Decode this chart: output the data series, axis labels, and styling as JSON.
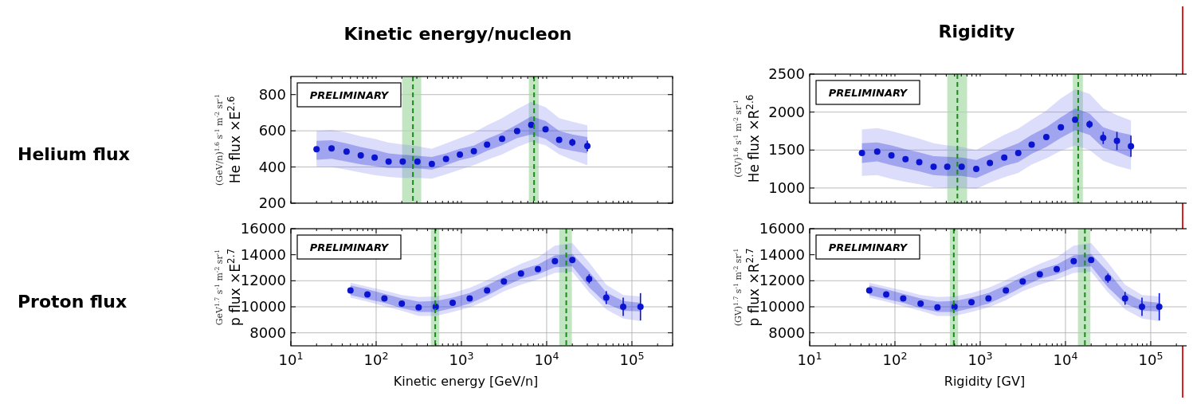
{
  "chart_data": [
    {
      "type": "scatter",
      "title": "Kinetic energy/nucleon",
      "ylabel": "(GeV/n)$^{1.6}$ s$^{-1}$ m$^{-2}$ sr$^{-1}$\nHe flux ×E$^{2.6}$",
      "annotations": [
        "PRELIMINARY",
        "Helium flux"
      ],
      "log": "x",
      "grid": true,
      "marker": "circle",
      "tick_labels": "y",
      "x": [
        20,
        30,
        45,
        66,
        96,
        140,
        205,
        305,
        450,
        660,
        960,
        1400,
        2000,
        3000,
        4500,
        6600,
        9700,
        14000,
        20000,
        30000
      ],
      "xlim": [
        10,
        300000
      ],
      "xticks": [
        {
          "value": 10,
          "label": null
        },
        {
          "value": 20,
          "label": null
        },
        {
          "value": 30,
          "label": null
        },
        {
          "value": 40,
          "label": null
        },
        {
          "value": 50,
          "label": null
        },
        {
          "value": 60,
          "label": null
        },
        {
          "value": 70,
          "label": null
        },
        {
          "value": 80,
          "label": null
        },
        {
          "value": 90,
          "label": null
        },
        {
          "value": 100,
          "label": null
        },
        {
          "value": 200,
          "label": null
        },
        {
          "value": 300,
          "label": null
        },
        {
          "value": 400,
          "label": null
        },
        {
          "value": 500,
          "label": null
        },
        {
          "value": 600,
          "label": null
        },
        {
          "value": 700,
          "label": null
        },
        {
          "value": 800,
          "label": null
        },
        {
          "value": 900,
          "label": null
        },
        {
          "value": 1000,
          "label": null
        },
        {
          "value": 2000,
          "label": null
        },
        {
          "value": 3000,
          "label": null
        },
        {
          "value": 4000,
          "label": null
        },
        {
          "value": 5000,
          "label": null
        },
        {
          "value": 6000,
          "label": null
        },
        {
          "value": 7000,
          "label": null
        },
        {
          "value": 8000,
          "label": null
        },
        {
          "value": 9000,
          "label": null
        },
        {
          "value": 10000,
          "label": null
        },
        {
          "value": 20000,
          "label": null
        },
        {
          "value": 30000,
          "label": null
        },
        {
          "value": 40000,
          "label": null
        },
        {
          "value": 50000,
          "label": null
        },
        {
          "value": 60000,
          "label": null
        },
        {
          "value": 70000,
          "label": null
        },
        {
          "value": 80000,
          "label": null
        },
        {
          "value": 90000,
          "label": null
        },
        {
          "value": 100000,
          "label": null
        },
        {
          "value": 200000,
          "label": null
        },
        {
          "value": 300000,
          "label": null
        }
      ],
      "ylim": [
        200,
        900
      ],
      "yticks": [
        200,
        400,
        600,
        800
      ],
      "bands": [
        {
          "axis": "x",
          "from": 202,
          "to": 338,
          "color": "#a8dca8"
        },
        {
          "axis": "x",
          "from": 6180,
          "to": 8060,
          "color": "#a8dca8"
        }
      ],
      "ref_lines": [
        {
          "axis": "x",
          "value": 270,
          "color": "#1a8a1a",
          "line_style": "dashed"
        },
        {
          "axis": "x",
          "value": 7120,
          "color": "#1a8a1a",
          "line_style": "dashed"
        }
      ],
      "series": [
        {
          "type": "scatter",
          "color": "#8080f0",
          "values": [
            null,
            null,
            null,
            null,
            null,
            null,
            null,
            null,
            null,
            null,
            null,
            null,
            null,
            null,
            null,
            null,
            null,
            null,
            null,
            null
          ],
          "lower": [
            400,
            400,
            385,
            370,
            355,
            345,
            340,
            340,
            335,
            360,
            385,
            410,
            440,
            470,
            510,
            540,
            520,
            470,
            440,
            410
          ],
          "upper": [
            600,
            605,
            590,
            570,
            555,
            535,
            525,
            515,
            500,
            530,
            560,
            590,
            630,
            670,
            720,
            760,
            730,
            670,
            650,
            630
          ]
        },
        {
          "type": "scatter",
          "color": "#0a14d0",
          "values": [
            498,
            503,
            485,
            464,
            452,
            430,
            430,
            430,
            417,
            444,
            469,
            487,
            524,
            555,
            598,
            632,
            608,
            550,
            536,
            516
          ],
          "errors": [
            null,
            null,
            null,
            null,
            null,
            null,
            null,
            null,
            null,
            null,
            null,
            null,
            null,
            null,
            null,
            null,
            null,
            15,
            20,
            30
          ],
          "lower": [
            440,
            445,
            430,
            415,
            405,
            395,
            395,
            393,
            385,
            410,
            438,
            455,
            490,
            520,
            560,
            580,
            555,
            505,
            490,
            475
          ],
          "upper": [
            545,
            548,
            530,
            510,
            495,
            475,
            468,
            462,
            455,
            475,
            500,
            518,
            555,
            590,
            635,
            680,
            655,
            600,
            580,
            565
          ]
        }
      ]
    },
    {
      "type": "scatter",
      "title": "Rigidity",
      "ylabel": "(GV)$^{1.6}$ s$^{-1}$ m$^{-2}$ sr$^{-1}$\nHe flux ×R$^{2.6}$",
      "annotations": [
        "PRELIMINARY"
      ],
      "log": "x",
      "grid": true,
      "marker": "circle",
      "tick_labels": "y",
      "x": [
        41,
        62,
        91,
        133,
        193,
        284,
        411,
        606,
        899,
        1300,
        1915,
        2795,
        4015,
        5960,
        8835,
        13000,
        19150,
        27700,
        40150,
        58600
      ],
      "xlim": [
        10,
        300000
      ],
      "xticks": [
        {
          "value": 10,
          "label": null
        },
        {
          "value": 20,
          "label": null
        },
        {
          "value": 30,
          "label": null
        },
        {
          "value": 40,
          "label": null
        },
        {
          "value": 50,
          "label": null
        },
        {
          "value": 60,
          "label": null
        },
        {
          "value": 70,
          "label": null
        },
        {
          "value": 80,
          "label": null
        },
        {
          "value": 90,
          "label": null
        },
        {
          "value": 100,
          "label": null
        },
        {
          "value": 200,
          "label": null
        },
        {
          "value": 300,
          "label": null
        },
        {
          "value": 400,
          "label": null
        },
        {
          "value": 500,
          "label": null
        },
        {
          "value": 600,
          "label": null
        },
        {
          "value": 700,
          "label": null
        },
        {
          "value": 800,
          "label": null
        },
        {
          "value": 900,
          "label": null
        },
        {
          "value": 1000,
          "label": null
        },
        {
          "value": 2000,
          "label": null
        },
        {
          "value": 3000,
          "label": null
        },
        {
          "value": 4000,
          "label": null
        },
        {
          "value": 5000,
          "label": null
        },
        {
          "value": 6000,
          "label": null
        },
        {
          "value": 7000,
          "label": null
        },
        {
          "value": 8000,
          "label": null
        },
        {
          "value": 9000,
          "label": null
        },
        {
          "value": 10000,
          "label": null
        },
        {
          "value": 20000,
          "label": null
        },
        {
          "value": 30000,
          "label": null
        },
        {
          "value": 40000,
          "label": null
        },
        {
          "value": 50000,
          "label": null
        },
        {
          "value": 60000,
          "label": null
        },
        {
          "value": 70000,
          "label": null
        },
        {
          "value": 80000,
          "label": null
        },
        {
          "value": 90000,
          "label": null
        },
        {
          "value": 100000,
          "label": null
        },
        {
          "value": 200000,
          "label": null
        },
        {
          "value": 300000,
          "label": null
        }
      ],
      "ylim": [
        800,
        2500
      ],
      "yticks": [
        1000,
        1500,
        2000,
        2500
      ],
      "bands": [
        {
          "axis": "x",
          "from": 411,
          "to": 702,
          "color": "#a8dca8"
        },
        {
          "axis": "x",
          "from": 12200,
          "to": 16000,
          "color": "#a8dca8"
        }
      ],
      "ref_lines": [
        {
          "axis": "x",
          "value": 540,
          "color": "#1a8a1a",
          "line_style": "dashed"
        },
        {
          "axis": "x",
          "value": 14100,
          "color": "#1a8a1a",
          "line_style": "dashed"
        }
      ],
      "series": [
        {
          "type": "scatter",
          "color": "#8080f0",
          "values": [
            null,
            null,
            null,
            null,
            null,
            null,
            null,
            null,
            null,
            null,
            null,
            null,
            null,
            null,
            null,
            null,
            null,
            null,
            null,
            null
          ],
          "lower": [
            1160,
            1170,
            1120,
            1080,
            1050,
            1010,
            1000,
            1000,
            990,
            1070,
            1140,
            1200,
            1310,
            1390,
            1490,
            1560,
            1500,
            1360,
            1290,
            1240
          ],
          "upper": [
            1770,
            1790,
            1750,
            1700,
            1650,
            1590,
            1560,
            1540,
            1500,
            1600,
            1700,
            1780,
            1900,
            2020,
            2180,
            2300,
            2240,
            2050,
            1960,
            1890
          ]
        },
        {
          "type": "scatter",
          "color": "#0a14d0",
          "values": [
            1460,
            1480,
            1430,
            1380,
            1340,
            1280,
            1280,
            1280,
            1250,
            1330,
            1400,
            1460,
            1570,
            1670,
            1800,
            1900,
            1840,
            1660,
            1620,
            1550
          ],
          "errors": [
            null,
            null,
            null,
            null,
            null,
            null,
            null,
            null,
            null,
            null,
            null,
            null,
            null,
            null,
            null,
            null,
            50,
            80,
            120,
            140
          ],
          "lower": [
            1330,
            1350,
            1300,
            1260,
            1220,
            1170,
            1160,
            1160,
            1130,
            1210,
            1290,
            1340,
            1450,
            1540,
            1660,
            1760,
            1700,
            1530,
            1480,
            1400
          ],
          "upper": [
            1590,
            1600,
            1560,
            1510,
            1470,
            1420,
            1410,
            1400,
            1370,
            1440,
            1520,
            1590,
            1700,
            1800,
            1930,
            2050,
            1980,
            1800,
            1740,
            1700
          ]
        }
      ]
    },
    {
      "type": "scatter",
      "xlabel": "Kinetic energy [GeV/n]",
      "ylabel": "GeV$^{1.7}$ s$^{-1}$ m$^{-2}$ sr$^{-1}$\np flux ×E$^{2.7}$",
      "annotations": [
        "PRELIMINARY",
        "Proton flux"
      ],
      "log": "x",
      "grid": true,
      "marker": "circle",
      "x": [
        50,
        79,
        125,
        200,
        315,
        500,
        790,
        1250,
        2000,
        3150,
        5000,
        7900,
        12500,
        20000,
        31500,
        50000,
        79000,
        126000
      ],
      "xlim": [
        10,
        300000
      ],
      "xticks": [
        {
          "value": 10,
          "label": "10$^{1}$"
        },
        {
          "value": 20,
          "label": null
        },
        {
          "value": 30,
          "label": null
        },
        {
          "value": 40,
          "label": null
        },
        {
          "value": 50,
          "label": null
        },
        {
          "value": 60,
          "label": null
        },
        {
          "value": 70,
          "label": null
        },
        {
          "value": 80,
          "label": null
        },
        {
          "value": 90,
          "label": null
        },
        {
          "value": 100,
          "label": "10$^{2}$"
        },
        {
          "value": 200,
          "label": null
        },
        {
          "value": 300,
          "label": null
        },
        {
          "value": 400,
          "label": null
        },
        {
          "value": 500,
          "label": null
        },
        {
          "value": 600,
          "label": null
        },
        {
          "value": 700,
          "label": null
        },
        {
          "value": 800,
          "label": null
        },
        {
          "value": 900,
          "label": null
        },
        {
          "value": 1000,
          "label": "10$^{3}$"
        },
        {
          "value": 2000,
          "label": null
        },
        {
          "value": 3000,
          "label": null
        },
        {
          "value": 4000,
          "label": null
        },
        {
          "value": 5000,
          "label": null
        },
        {
          "value": 6000,
          "label": null
        },
        {
          "value": 7000,
          "label": null
        },
        {
          "value": 8000,
          "label": null
        },
        {
          "value": 9000,
          "label": null
        },
        {
          "value": 10000,
          "label": "10$^{4}$"
        },
        {
          "value": 20000,
          "label": null
        },
        {
          "value": 30000,
          "label": null
        },
        {
          "value": 40000,
          "label": null
        },
        {
          "value": 50000,
          "label": null
        },
        {
          "value": 60000,
          "label": null
        },
        {
          "value": 70000,
          "label": null
        },
        {
          "value": 80000,
          "label": null
        },
        {
          "value": 90000,
          "label": null
        },
        {
          "value": 100000,
          "label": "10$^{5}$"
        },
        {
          "value": 200000,
          "label": null
        },
        {
          "value": 300000,
          "label": null
        }
      ],
      "ylim": [
        7000,
        16000
      ],
      "yticks": [
        8000,
        10000,
        12000,
        14000,
        16000
      ],
      "bands": [
        {
          "axis": "x",
          "from": 439,
          "to": 548,
          "color": "#a8dca8"
        },
        {
          "axis": "x",
          "from": 14060,
          "to": 19770,
          "color": "#a8dca8"
        }
      ],
      "ref_lines": [
        {
          "axis": "x",
          "value": 493,
          "color": "#1a8a1a",
          "line_style": "dashed"
        },
        {
          "axis": "x",
          "value": 16980,
          "color": "#1a8a1a",
          "line_style": "dashed"
        }
      ],
      "series": [
        {
          "type": "scatter",
          "color": "#8080f0",
          "values": [
            null,
            null,
            null,
            null,
            null,
            null,
            null,
            null,
            null,
            null,
            null,
            null,
            null,
            null,
            null,
            null,
            null,
            null
          ],
          "lower": [
            10700,
            10400,
            10050,
            9700,
            9300,
            9300,
            9600,
            9950,
            10500,
            11200,
            11700,
            12100,
            12600,
            12700,
            11100,
            9800,
            9100,
            8900
          ],
          "upper": [
            11850,
            11550,
            11250,
            10900,
            10750,
            10800,
            11050,
            11450,
            12050,
            12700,
            13300,
            13800,
            14700,
            14900,
            13400,
            11700,
            10900,
            10800
          ]
        },
        {
          "type": "scatter",
          "color": "#0a14d0",
          "values": [
            11250,
            10950,
            10650,
            10250,
            9950,
            10000,
            10300,
            10650,
            11250,
            11950,
            12550,
            12900,
            13500,
            13600,
            12150,
            10700,
            10000,
            10000
          ],
          "errors": [
            null,
            null,
            null,
            null,
            null,
            null,
            null,
            null,
            null,
            null,
            null,
            null,
            null,
            200,
            350,
            500,
            700,
            1050
          ],
          "lower": [
            10900,
            10600,
            10300,
            9900,
            9600,
            9600,
            9900,
            10250,
            10850,
            11550,
            12150,
            12500,
            13050,
            13100,
            11500,
            10250,
            9700,
            9650
          ],
          "upper": [
            11640,
            11350,
            11000,
            10650,
            10400,
            10450,
            10700,
            11050,
            11650,
            12300,
            12850,
            13250,
            13950,
            14050,
            12700,
            11100,
            10450,
            10300
          ]
        }
      ]
    },
    {
      "type": "scatter",
      "xlabel": "Rigidity [GV]",
      "ylabel": "(GV)$^{1.7}$ s$^{-1}$ m$^{-2}$ sr$^{-1}$\np flux ×R$^{2.7}$",
      "annotations": [
        "PRELIMINARY"
      ],
      "log": "x",
      "grid": true,
      "marker": "circle",
      "x": [
        50,
        79,
        125,
        200,
        315,
        500,
        790,
        1250,
        2000,
        3150,
        5000,
        7900,
        12500,
        20000,
        31500,
        50000,
        79000,
        126000
      ],
      "xlim": [
        10,
        300000
      ],
      "xticks": [
        {
          "value": 10,
          "label": "10$^{1}$"
        },
        {
          "value": 20,
          "label": null
        },
        {
          "value": 30,
          "label": null
        },
        {
          "value": 40,
          "label": null
        },
        {
          "value": 50,
          "label": null
        },
        {
          "value": 60,
          "label": null
        },
        {
          "value": 70,
          "label": null
        },
        {
          "value": 80,
          "label": null
        },
        {
          "value": 90,
          "label": null
        },
        {
          "value": 100,
          "label": "10$^{2}$"
        },
        {
          "value": 200,
          "label": null
        },
        {
          "value": 300,
          "label": null
        },
        {
          "value": 400,
          "label": null
        },
        {
          "value": 500,
          "label": null
        },
        {
          "value": 600,
          "label": null
        },
        {
          "value": 700,
          "label": null
        },
        {
          "value": 800,
          "label": null
        },
        {
          "value": 900,
          "label": null
        },
        {
          "value": 1000,
          "label": "10$^{3}$"
        },
        {
          "value": 2000,
          "label": null
        },
        {
          "value": 3000,
          "label": null
        },
        {
          "value": 4000,
          "label": null
        },
        {
          "value": 5000,
          "label": null
        },
        {
          "value": 6000,
          "label": null
        },
        {
          "value": 7000,
          "label": null
        },
        {
          "value": 8000,
          "label": null
        },
        {
          "value": 9000,
          "label": null
        },
        {
          "value": 10000,
          "label": "10$^{4}$"
        },
        {
          "value": 20000,
          "label": null
        },
        {
          "value": 30000,
          "label": null
        },
        {
          "value": 40000,
          "label": null
        },
        {
          "value": 50000,
          "label": null
        },
        {
          "value": 60000,
          "label": null
        },
        {
          "value": 70000,
          "label": null
        },
        {
          "value": 80000,
          "label": null
        },
        {
          "value": 90000,
          "label": null
        },
        {
          "value": 100000,
          "label": "10$^{5}$"
        },
        {
          "value": 200000,
          "label": null
        },
        {
          "value": 300000,
          "label": null
        }
      ],
      "ylim": [
        7000,
        16000
      ],
      "yticks": [
        8000,
        10000,
        12000,
        14000,
        16000
      ],
      "bands": [
        {
          "axis": "x",
          "from": 440,
          "to": 550,
          "color": "#a8dca8"
        },
        {
          "axis": "x",
          "from": 14000,
          "to": 19600,
          "color": "#a8dca8"
        }
      ],
      "ref_lines": [
        {
          "axis": "x",
          "value": 490,
          "color": "#1a8a1a",
          "line_style": "dashed"
        },
        {
          "axis": "x",
          "value": 16900,
          "color": "#1a8a1a",
          "line_style": "dashed"
        }
      ],
      "series": [
        {
          "type": "scatter",
          "color": "#8080f0",
          "values": [
            null,
            null,
            null,
            null,
            null,
            null,
            null,
            null,
            null,
            null,
            null,
            null,
            null,
            null,
            null,
            null,
            null,
            null
          ],
          "lower": [
            10700,
            10400,
            10050,
            9700,
            9300,
            9300,
            9600,
            9950,
            10500,
            11200,
            11700,
            12100,
            12600,
            12700,
            11100,
            9800,
            9100,
            8900
          ],
          "upper": [
            11850,
            11550,
            11250,
            10900,
            10750,
            10800,
            11050,
            11450,
            12050,
            12700,
            13300,
            13800,
            14700,
            14900,
            13400,
            11700,
            10900,
            10800
          ]
        },
        {
          "type": "scatter",
          "color": "#0a14d0",
          "values": [
            11250,
            10950,
            10650,
            10250,
            9950,
            10000,
            10350,
            10650,
            11250,
            11950,
            12500,
            12900,
            13500,
            13600,
            12200,
            10650,
            10000,
            10000
          ],
          "errors": [
            null,
            null,
            null,
            null,
            null,
            null,
            null,
            null,
            null,
            null,
            null,
            null,
            null,
            200,
            350,
            500,
            700,
            1050
          ],
          "lower": [
            10900,
            10600,
            10300,
            9900,
            9600,
            9600,
            9900,
            10250,
            10850,
            11550,
            12150,
            12500,
            13050,
            13100,
            11500,
            10250,
            9700,
            9650
          ],
          "upper": [
            11640,
            11350,
            11000,
            10650,
            10400,
            10450,
            10700,
            11050,
            11650,
            12300,
            12850,
            13250,
            13950,
            14050,
            12700,
            11100,
            10450,
            10300
          ]
        }
      ]
    }
  ]
}
